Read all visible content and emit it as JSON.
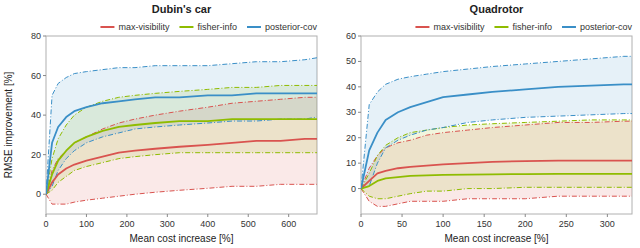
{
  "chart_data": [
    {
      "type": "line",
      "title": "Dubin's car",
      "x_label": "Mean cost increase [%]",
      "y_label": "RMSE improvement [%]",
      "x": [
        0,
        15,
        30,
        50,
        70,
        100,
        140,
        180,
        220,
        270,
        330,
        400,
        460,
        520,
        580,
        640,
        670
      ],
      "xlim": [
        0,
        670
      ],
      "ylim": [
        -10,
        80
      ],
      "xticks": [
        0,
        100,
        200,
        300,
        400,
        500,
        600
      ],
      "yticks": [
        0,
        20,
        40,
        60,
        80
      ],
      "legend": "upper right",
      "series": [
        {
          "name": "max-visibility",
          "color": "#d9534f",
          "values": [
            0,
            6,
            10,
            13,
            15,
            17,
            19,
            21,
            22,
            23,
            24,
            25,
            26,
            27,
            27,
            28,
            28
          ],
          "upper": [
            0,
            12,
            18,
            22,
            26,
            29,
            33,
            36,
            38,
            40,
            42,
            44,
            46,
            47,
            48,
            49,
            49
          ],
          "lower": [
            0,
            -5,
            -5,
            -5,
            -4,
            -3,
            -2,
            -1,
            0,
            1,
            2,
            3,
            4,
            4,
            5,
            5,
            5
          ]
        },
        {
          "name": "fisher-info",
          "color": "#8fbc00",
          "values": [
            0,
            10,
            17,
            22,
            26,
            29,
            32,
            34,
            35,
            36,
            37,
            37,
            38,
            38,
            38,
            38,
            38
          ],
          "upper": [
            0,
            18,
            28,
            35,
            40,
            44,
            47,
            49,
            50,
            51,
            52,
            53,
            54,
            54,
            55,
            55,
            55
          ],
          "lower": [
            0,
            2,
            6,
            9,
            12,
            14,
            16,
            18,
            19,
            20,
            21,
            21,
            21,
            21,
            21,
            21,
            21
          ]
        },
        {
          "name": "posterior-cov",
          "color": "#3a8fc7",
          "values": [
            0,
            26,
            34,
            39,
            42,
            44,
            46,
            47,
            48,
            49,
            49,
            50,
            50,
            51,
            51,
            51,
            51
          ],
          "upper": [
            0,
            50,
            56,
            59,
            61,
            62,
            63,
            64,
            64,
            65,
            65,
            65,
            66,
            67,
            67,
            68,
            69
          ],
          "lower": [
            0,
            4,
            12,
            18,
            22,
            26,
            29,
            31,
            33,
            34,
            35,
            36,
            37,
            37,
            38,
            38,
            39
          ]
        }
      ]
    },
    {
      "type": "line",
      "title": "Quadrotor",
      "x_label": "Mean cost increase [%]",
      "x": [
        0,
        10,
        20,
        30,
        45,
        60,
        80,
        100,
        130,
        160,
        200,
        240,
        280,
        320,
        330
      ],
      "xlim": [
        0,
        330
      ],
      "ylim": [
        -10,
        60
      ],
      "xticks": [
        0,
        50,
        100,
        150,
        200,
        250,
        300
      ],
      "yticks": [
        0,
        10,
        20,
        30,
        40,
        50,
        60
      ],
      "legend": "upper right",
      "series": [
        {
          "name": "max-visibility",
          "color": "#d9534f",
          "values": [
            0,
            3,
            6,
            7,
            8,
            8.5,
            9,
            9.5,
            10,
            10.5,
            10.8,
            11,
            11,
            11,
            11
          ],
          "upper": [
            0,
            8,
            13,
            16,
            18,
            19,
            21,
            22,
            23,
            24,
            25,
            26,
            26,
            26.5,
            26.5
          ],
          "lower": [
            0,
            -5,
            -7,
            -7,
            -6,
            -5,
            -5,
            -5,
            -4,
            -4,
            -4,
            -3,
            -3,
            -3,
            -3
          ]
        },
        {
          "name": "fisher-info",
          "color": "#8fbc00",
          "values": [
            0,
            1,
            3,
            4,
            4.5,
            5,
            5.2,
            5.4,
            5.5,
            5.6,
            5.7,
            5.8,
            5.8,
            5.8,
            5.8
          ],
          "upper": [
            0,
            6,
            13,
            17,
            20,
            22,
            23,
            24,
            25,
            25.5,
            26,
            26.5,
            27,
            27,
            27
          ],
          "lower": [
            0,
            -3,
            -4,
            -4,
            -3,
            -2,
            -1,
            -1,
            0,
            0,
            0.5,
            0.5,
            0.5,
            0.5,
            0.5
          ]
        },
        {
          "name": "posterior-cov",
          "color": "#3a8fc7",
          "values": [
            0,
            15,
            22,
            27,
            30,
            32,
            34,
            36,
            37,
            38,
            39,
            40,
            40.5,
            41,
            41
          ],
          "upper": [
            0,
            33,
            38,
            41,
            43,
            44,
            45,
            46,
            47,
            48,
            49,
            50,
            51,
            52,
            52
          ],
          "lower": [
            0,
            1,
            10,
            16,
            19,
            21,
            23,
            24,
            26,
            27,
            28,
            28.5,
            29,
            29.5,
            29.5
          ]
        }
      ]
    }
  ]
}
